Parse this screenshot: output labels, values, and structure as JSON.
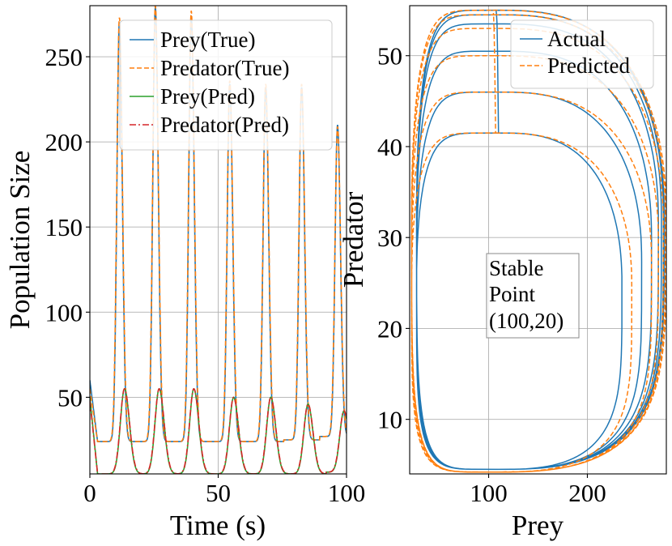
{
  "colors": {
    "prey_true": "#1f77b4",
    "predator_true": "#ff7f0e",
    "prey_pred": "#2ca02c",
    "predator_pred": "#d62728"
  },
  "chart_data": [
    {
      "type": "line",
      "xlabel": "Time (s)",
      "ylabel": "Population Size",
      "xlim": [
        0,
        100
      ],
      "ylim": [
        5,
        280
      ],
      "xticks": [
        "0",
        "50",
        "100"
      ],
      "yticks": [
        "50",
        "100",
        "150",
        "200",
        "250"
      ],
      "grid": true,
      "legend_position": "top-right",
      "series": [
        {
          "name": "Prey(True)",
          "style": "solid",
          "color": "#1f77b4",
          "description": "oscillating prey population, period about 14 s",
          "peaks_t": [
            11.5,
            25.5,
            39.5,
            54.5,
            68.5,
            82.5,
            96.5
          ],
          "peaks_value": [
            270,
            279,
            274,
            234,
            232,
            232,
            210
          ],
          "troughs_value": [
            24,
            24,
            24,
            24,
            24,
            25,
            27
          ]
        },
        {
          "name": "Predator(True)",
          "style": "dashed",
          "color": "#ff7f0e",
          "description": "tracks Prey(True) closely",
          "peaks_t": [
            11.5,
            25.5,
            39.5,
            54.5,
            68.5,
            82.5,
            96.5
          ],
          "peaks_value": [
            273,
            280,
            277,
            236,
            234,
            234,
            209
          ]
        },
        {
          "name": "Prey(Pred)",
          "style": "solid",
          "color": "#2ca02c",
          "description": "predator oscillation, lags prey",
          "peaks_t": [
            13.5,
            27,
            40.5,
            56,
            70.5,
            85,
            99
          ],
          "peaks_value": [
            55,
            55,
            55,
            50,
            50,
            46,
            42
          ],
          "troughs_value": [
            5,
            5,
            5,
            5,
            5,
            5,
            6
          ]
        },
        {
          "name": "Predator(Pred)",
          "style": "dashdot",
          "color": "#d62728",
          "description": "tracks Prey(Pred) closely",
          "peaks_t": [
            13.5,
            27,
            40.5,
            56,
            70.5,
            85,
            99
          ],
          "peaks_value": [
            55,
            55,
            55,
            50,
            50,
            46,
            42
          ]
        }
      ]
    },
    {
      "type": "line",
      "xlabel": "Prey",
      "ylabel": "Predator",
      "xlim": [
        20,
        280
      ],
      "ylim": [
        4,
        55.5
      ],
      "xticks": [
        "100",
        "200"
      ],
      "yticks": [
        "10",
        "20",
        "30",
        "40",
        "50"
      ],
      "grid": true,
      "legend_position": "top-right",
      "series": [
        {
          "name": "Actual",
          "style": "solid",
          "color": "#1f77b4",
          "description": "phase-plane spiral of predator vs prey, start near (115, 41.5), outward growing loops",
          "loop_max_predator": [
            41.5,
            46,
            50.5,
            53.5,
            54.5,
            55,
            55
          ],
          "loop_max_prey": [
            235,
            255,
            265,
            272,
            275,
            277,
            278
          ],
          "min_prey": 25,
          "min_predator": 4.5
        },
        {
          "name": "Predicted",
          "style": "dashed",
          "color": "#ff7f0e",
          "description": "predicted phase-plane spiral, start near (78, 40), loosely follows Actual",
          "loop_max_predator": [
            41.5,
            46,
            50,
            53,
            54.5,
            55,
            55
          ],
          "loop_max_prey": [
            245,
            265,
            272,
            277,
            279,
            280,
            280
          ],
          "min_prey": 22,
          "min_predator": 4.2
        }
      ],
      "annotation": {
        "lines": [
          "Stable",
          "Point",
          "(100,20)"
        ]
      }
    }
  ]
}
